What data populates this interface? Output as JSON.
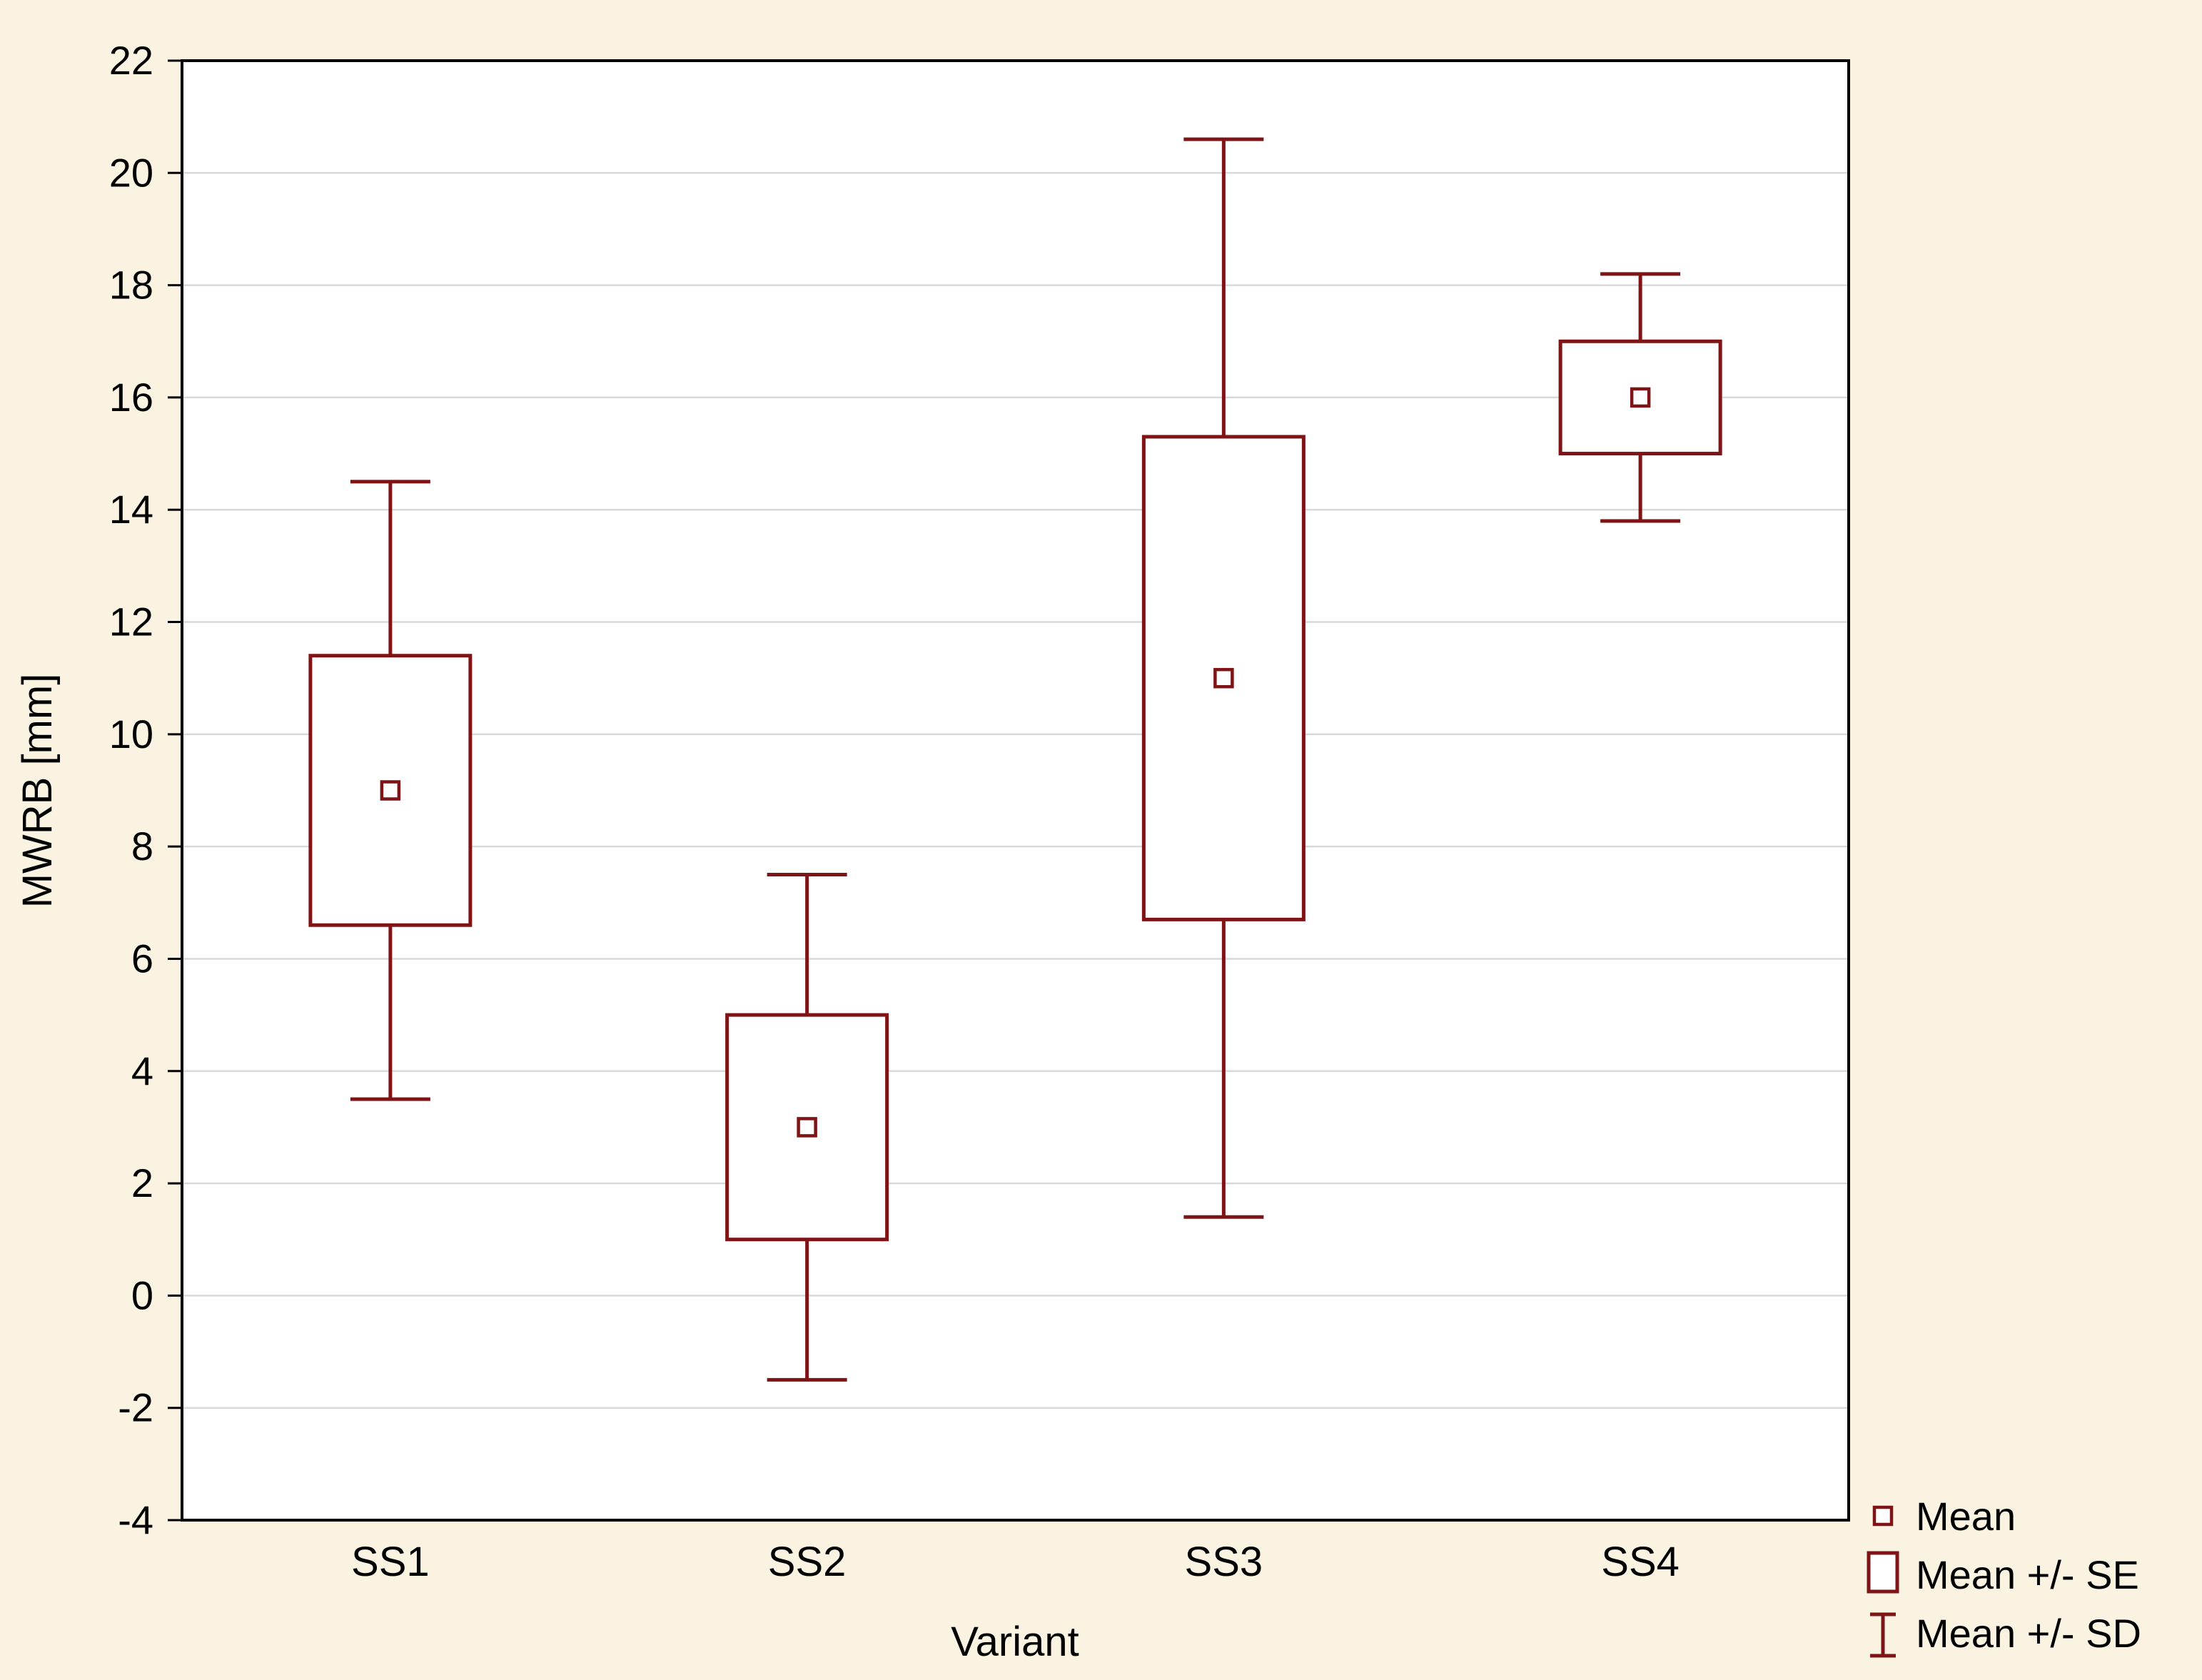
{
  "chart_data": {
    "type": "box",
    "title": "",
    "xlabel": "Variant",
    "ylabel": "MWRB  [mm]",
    "categories": [
      "SS1",
      "SS2",
      "SS3",
      "SS4"
    ],
    "series": [
      {
        "category": "SS1",
        "mean": 9.0,
        "se_low": 6.6,
        "se_high": 11.4,
        "sd_low": 3.5,
        "sd_high": 14.5
      },
      {
        "category": "SS2",
        "mean": 3.0,
        "se_low": 1.0,
        "se_high": 5.0,
        "sd_low": -1.5,
        "sd_high": 7.5
      },
      {
        "category": "SS3",
        "mean": 11.0,
        "se_low": 6.7,
        "se_high": 15.3,
        "sd_low": 1.4,
        "sd_high": 20.6
      },
      {
        "category": "SS4",
        "mean": 16.0,
        "se_low": 15.0,
        "se_high": 17.0,
        "sd_low": 13.8,
        "sd_high": 18.2
      }
    ],
    "ylim": [
      -4,
      22
    ],
    "ytick_step": 2,
    "ytick_labels": [
      "-4",
      "-2",
      "0",
      "2",
      "4",
      "6",
      "8",
      "10",
      "12",
      "14",
      "16",
      "18",
      "20",
      "22"
    ],
    "grid": "horizontal",
    "legend_position": "bottom-right",
    "legend": [
      {
        "label": "Mean",
        "marker": "square-point"
      },
      {
        "label": "Mean +/- SE",
        "marker": "box"
      },
      {
        "label": "Mean +/- SD",
        "marker": "error-bar"
      }
    ],
    "colors": {
      "series": "#7f1416",
      "background": "#faf3e1",
      "plot_background": "#ffffff",
      "grid": "#d9d9d9",
      "axis": "#000000"
    }
  }
}
